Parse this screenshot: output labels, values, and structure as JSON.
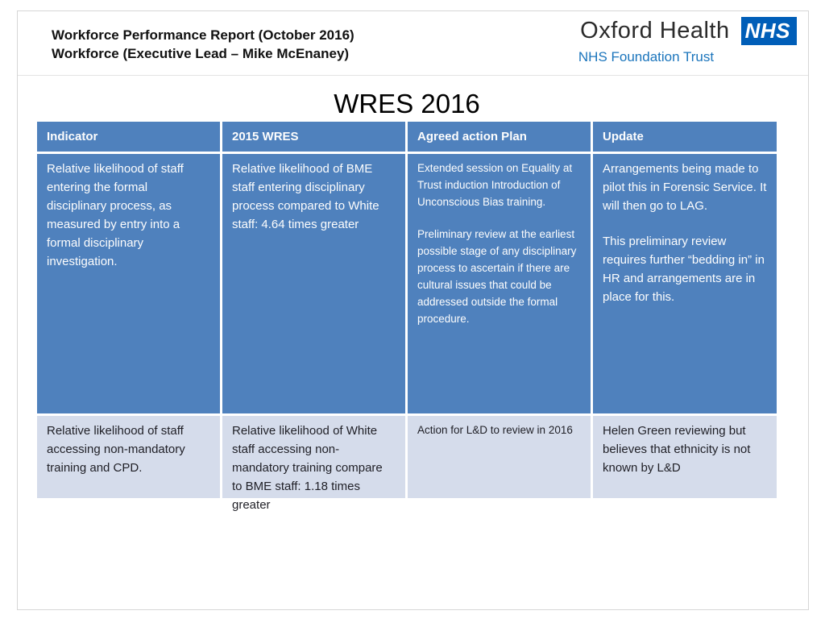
{
  "slide": {
    "header": {
      "title_line1": "Workforce Performance Report (October 2016)",
      "title_line2": "Workforce (Executive Lead – Mike McEnaney)",
      "logo": {
        "org_name": "Oxford Health",
        "nhs_acronym": "NHS",
        "sub_text": "NHS Foundation Trust"
      }
    },
    "main_title": "WRES 2016",
    "table": {
      "columns": [
        "Indicator",
        "2015 WRES",
        "Agreed action Plan",
        "Update"
      ],
      "rows": [
        {
          "indicator": "Relative likelihood of staff entering the formal disciplinary process, as measured by entry into a formal disciplinary investigation.",
          "wres_2015": "Relative likelihood of BME staff entering disciplinary process compared to White staff: 4.64 times greater",
          "action_plan": [
            "Extended session on Equality at Trust induction Introduction of Unconscious Bias training.",
            "Preliminary review at the earliest possible stage of any disciplinary process to ascertain if there are cultural issues that could be addressed outside the formal procedure."
          ],
          "update": [
            "Arrangements being made to pilot this in Forensic Service. It will then go to LAG.",
            "This preliminary review requires further “bedding in” in HR and arrangements are in place for this."
          ]
        },
        {
          "indicator": "Relative likelihood of staff accessing non-mandatory training and CPD.",
          "wres_2015": "Relative likelihood of White staff accessing non-mandatory training compare to BME staff: 1.18 times greater",
          "action_plan": [
            "Action for L&D to review in 2016"
          ],
          "update": [
            "Helen Green reviewing but believes that ethnicity is not known by L&D"
          ]
        }
      ]
    },
    "colors": {
      "table_blue": "#4F81BD",
      "row_light": "#D5DCEB",
      "nhs_blue": "#005EB8",
      "trust_blue": "#1B75BC"
    }
  }
}
